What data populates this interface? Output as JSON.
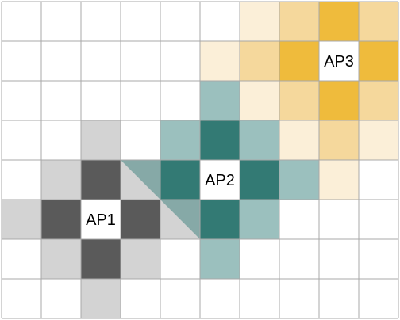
{
  "grid": {
    "cols": 10,
    "rows": 8
  },
  "colors": {
    "grid_line": "#a8a8a8",
    "ap1_dark": "#5a5a5a",
    "ap1_light": "#d3d3d3",
    "ap2_dark": "#337a74",
    "ap2_light": "#9bc0be",
    "ap2_mid": "#86a9a7",
    "ap3_dark": "#efbb3c",
    "ap3_mid": "#f5d89c",
    "ap3_light": "#fbefd8",
    "ap_cell": "#ffffff"
  },
  "access_points": [
    {
      "id": "ap1",
      "label": "AP1",
      "col": 2,
      "row": 5,
      "cells": [
        {
          "c": 2,
          "r": 3,
          "tone": "ap1_light"
        },
        {
          "c": 1,
          "r": 4,
          "tone": "ap1_light"
        },
        {
          "c": 3,
          "r": 4,
          "tone": "ap1_light"
        },
        {
          "c": 0,
          "r": 5,
          "tone": "ap1_light"
        },
        {
          "c": 4,
          "r": 5,
          "tone": "ap1_light"
        },
        {
          "c": 1,
          "r": 6,
          "tone": "ap1_light"
        },
        {
          "c": 3,
          "r": 6,
          "tone": "ap1_light"
        },
        {
          "c": 2,
          "r": 7,
          "tone": "ap1_light"
        },
        {
          "c": 2,
          "r": 4,
          "tone": "ap1_dark"
        },
        {
          "c": 1,
          "r": 5,
          "tone": "ap1_dark"
        },
        {
          "c": 3,
          "r": 5,
          "tone": "ap1_dark"
        },
        {
          "c": 2,
          "r": 6,
          "tone": "ap1_dark"
        }
      ]
    },
    {
      "id": "ap2",
      "label": "AP2",
      "col": 5,
      "row": 4,
      "cells": [
        {
          "c": 5,
          "r": 2,
          "tone": "ap2_light"
        },
        {
          "c": 4,
          "r": 3,
          "tone": "ap2_light"
        },
        {
          "c": 6,
          "r": 3,
          "tone": "ap2_light"
        },
        {
          "c": 7,
          "r": 4,
          "tone": "ap2_light"
        },
        {
          "c": 6,
          "r": 5,
          "tone": "ap2_light"
        },
        {
          "c": 5,
          "r": 6,
          "tone": "ap2_light"
        },
        {
          "c": 5,
          "r": 3,
          "tone": "ap2_dark"
        },
        {
          "c": 4,
          "r": 4,
          "tone": "ap2_dark"
        },
        {
          "c": 6,
          "r": 4,
          "tone": "ap2_dark"
        },
        {
          "c": 5,
          "r": 5,
          "tone": "ap2_dark"
        }
      ]
    },
    {
      "id": "ap3",
      "label": "AP3",
      "col": 8,
      "row": 1,
      "cells": [
        {
          "c": 6,
          "r": 0,
          "tone": "ap3_light"
        },
        {
          "c": 5,
          "r": 1,
          "tone": "ap3_light"
        },
        {
          "c": 6,
          "r": 2,
          "tone": "ap3_light"
        },
        {
          "c": 7,
          "r": 3,
          "tone": "ap3_light"
        },
        {
          "c": 9,
          "r": 3,
          "tone": "ap3_light"
        },
        {
          "c": 8,
          "r": 4,
          "tone": "ap3_light"
        },
        {
          "c": 7,
          "r": 0,
          "tone": "ap3_mid"
        },
        {
          "c": 9,
          "r": 0,
          "tone": "ap3_mid"
        },
        {
          "c": 6,
          "r": 1,
          "tone": "ap3_mid"
        },
        {
          "c": 7,
          "r": 2,
          "tone": "ap3_mid"
        },
        {
          "c": 9,
          "r": 2,
          "tone": "ap3_mid"
        },
        {
          "c": 8,
          "r": 3,
          "tone": "ap3_mid"
        },
        {
          "c": 8,
          "r": 0,
          "tone": "ap3_dark"
        },
        {
          "c": 7,
          "r": 1,
          "tone": "ap3_dark"
        },
        {
          "c": 9,
          "r": 1,
          "tone": "ap3_dark"
        },
        {
          "c": 8,
          "r": 2,
          "tone": "ap3_dark"
        }
      ]
    }
  ],
  "overlaps": [
    {
      "id": "overlap-ap1-ap2-upper",
      "c": 3,
      "r": 4,
      "tone": "ap2_mid",
      "corner": "top-right"
    },
    {
      "id": "overlap-ap1-ap2-lower",
      "c": 4,
      "r": 5,
      "tone": "ap2_mid",
      "corner": "top-right"
    }
  ]
}
